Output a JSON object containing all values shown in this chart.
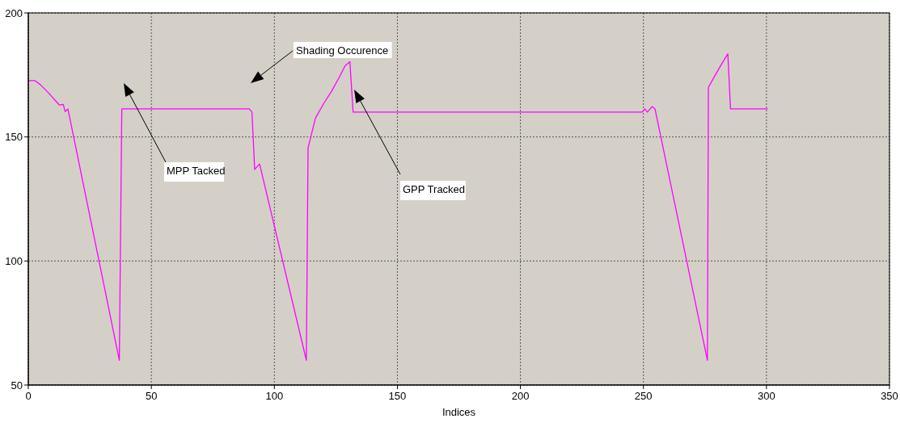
{
  "chart_data": {
    "type": "line",
    "xlabel": "Indices",
    "xlim": [
      0,
      350
    ],
    "xticks": [
      0,
      50,
      100,
      150,
      200,
      250,
      300,
      350
    ],
    "ylim": [
      50,
      200
    ],
    "yticks": [
      50,
      100,
      150,
      200
    ],
    "grid": true,
    "marker": "none",
    "line_style": "solid",
    "series": [
      {
        "color": "#ff00ff",
        "x": [
          0,
          1.6,
          2.7,
          5,
          8,
          12.6,
          14.2,
          15,
          16.1,
          37,
          38,
          89.8,
          90.9,
          92,
          94,
          113,
          113.7,
          116.7,
          120,
          123.2,
          126.5,
          128.7,
          130.7,
          132,
          249.5,
          250.6,
          251.6,
          253.6,
          254.7,
          276,
          276.4,
          278.2,
          281,
          284.3,
          285.4,
          300.5
        ],
        "values": [
          172.7,
          172.7,
          172.7,
          171,
          168,
          162.9,
          163.1,
          160.2,
          161.3,
          60,
          161.3,
          161.3,
          160,
          136.9,
          139.1,
          60,
          145.6,
          157.6,
          163.4,
          168.3,
          174.3,
          178.6,
          180.3,
          160,
          160,
          161.3,
          160,
          162.3,
          161.3,
          60,
          170,
          173.2,
          178.1,
          183.5,
          161.3,
          161.3
        ]
      }
    ],
    "annotations": [
      "Shading Occurence",
      "MPP Tacked",
      "GPP Tracked"
    ]
  }
}
